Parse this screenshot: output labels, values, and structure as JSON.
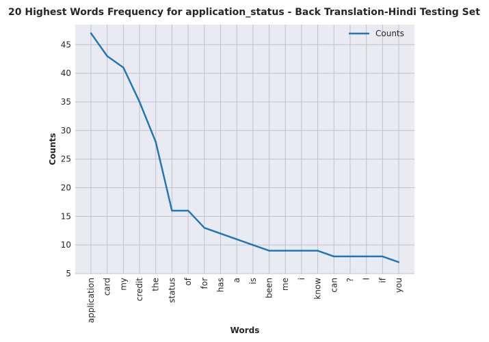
{
  "chart_data": {
    "type": "line",
    "title": "20 Highest Words Frequency for application_status - Back Translation-Hindi Testing Set",
    "xlabel": "Words",
    "ylabel": "Counts",
    "categories": [
      "application",
      "card",
      "my",
      "credit",
      "the",
      "status",
      "of",
      "for",
      "has",
      "a",
      "is",
      "been",
      "me",
      "i",
      "know",
      "can",
      "?",
      "I",
      "if",
      "you"
    ],
    "series": [
      {
        "name": "Counts",
        "values": [
          47,
          43,
          41,
          35,
          28,
          16,
          16,
          13,
          12,
          11,
          10,
          9,
          9,
          9,
          9,
          8,
          8,
          8,
          8,
          7
        ]
      }
    ],
    "ylim": [
      5,
      48.5
    ],
    "yticks": [
      5,
      10,
      15,
      20,
      25,
      30,
      35,
      40,
      45
    ],
    "grid": true,
    "legend_position": "top-right",
    "colors": {
      "line": "#1f77b4",
      "plot_background": "#eaeaf2",
      "grid": "#c0c0c8",
      "text": "#262626"
    }
  }
}
